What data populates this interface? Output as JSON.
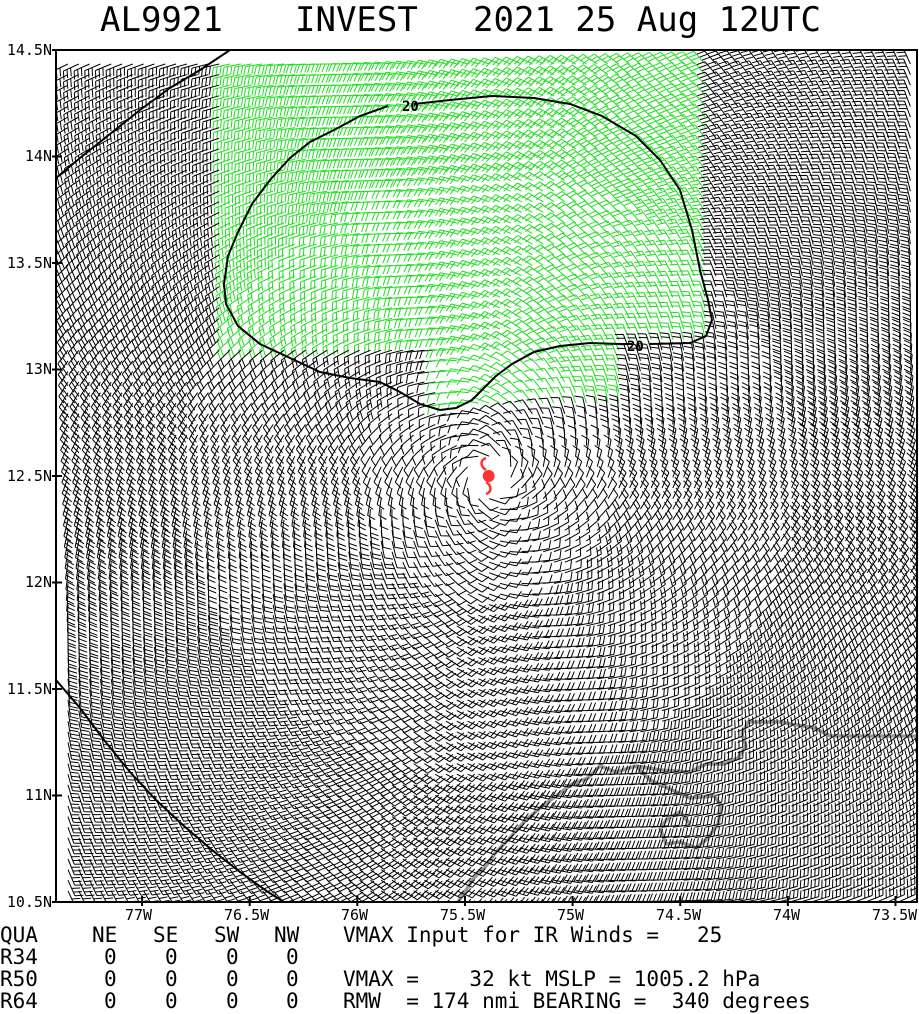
{
  "title": {
    "storm_id": "AL9921",
    "storm_name": "INVEST",
    "datetime": "2021 25 Aug 12UTC"
  },
  "map": {
    "lat_range": [
      10.5,
      14.5
    ],
    "lon_range": [
      -77.4,
      -73.4
    ],
    "lat_ticks": [
      "14.5N",
      "14N",
      "13.5N",
      "13N",
      "12.5N",
      "12N",
      "11.5N",
      "11N",
      "10.5N"
    ],
    "lon_ticks": [
      "77W",
      "76.5W",
      "76W",
      "75.5W",
      "75W",
      "74.5W",
      "74W",
      "73.5W"
    ],
    "center_lon": -75.39,
    "center_lat": 12.5,
    "contour_label": "20",
    "colors": {
      "barbs_under_20": "#000000",
      "barbs_20_and_above": "#22dd22",
      "coastline": "#999999",
      "storm_symbol": "#ff3333",
      "contour": "#000000"
    },
    "storm_symbol_icon": "tropical-cyclone-icon"
  },
  "info": {
    "headers": [
      "QUA",
      "NE",
      "SE",
      "SW",
      "NW"
    ],
    "rows": [
      {
        "label": "R34",
        "values": [
          "0",
          "0",
          "0",
          "0"
        ]
      },
      {
        "label": "R50",
        "values": [
          "0",
          "0",
          "0",
          "0"
        ]
      },
      {
        "label": "R64",
        "values": [
          "0",
          "0",
          "0",
          "0"
        ]
      }
    ],
    "vmax_input": "VMAX Input for IR Winds =   25",
    "vmax_mslp": "VMAX =    32 kt MSLP = 1005.2 hPa",
    "rmw_bearing": "RMW  = 174 nmi BEARING =  340 degrees"
  }
}
